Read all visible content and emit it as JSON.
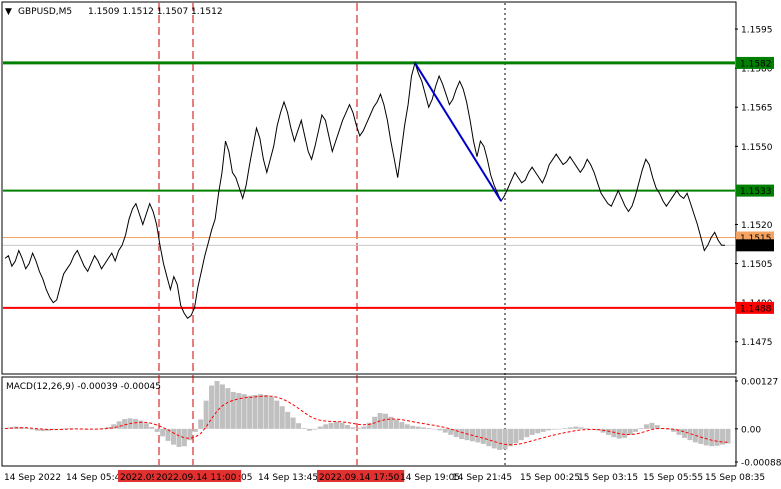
{
  "header": {
    "symbol_label": "GBPUSD,M5",
    "ohlc_values": "1.1509 1.1512 1.1507 1.1512",
    "macd_label": "MACD(12,26,9) -0.00039 -0.00045"
  },
  "chart_data": [
    {
      "type": "line",
      "series_role": "close price",
      "ylim": [
        1.1463,
        1.1605
      ],
      "y_ticks": [
        "1.1595",
        "1.1580",
        "1.1565",
        "1.1550",
        "1.1520",
        "1.1505",
        "1.1490",
        "1.1475"
      ],
      "x_labels": [
        "14 Sep 2022",
        "14 Sep 05:45",
        "2022.09",
        "2022.09.14 11:00",
        ":05",
        "14 Sep 13:45",
        "2022.09.14 17:50",
        "14 Sep 19:05",
        "14 Sep 21:45",
        "15 Sep 00:25",
        "15 Sep 03:15",
        "15 Sep 05:55",
        "15 Sep 08:35"
      ],
      "levels": [
        {
          "value": 1.1582,
          "label": "1.1582",
          "color": "#008000",
          "thick": true
        },
        {
          "value": 1.1533,
          "label": "1.1533",
          "color": "#008000",
          "thick": false
        },
        {
          "value": 1.1488,
          "label": "1.1488",
          "color": "#ff0000",
          "thick": false
        },
        {
          "value": 1.1515,
          "label": "1.1515",
          "color": "#f4a460",
          "thick": false
        }
      ],
      "bid_value": 1.1512,
      "bid_label": "1.1512",
      "colors": {
        "price": "#000000",
        "trend": "#0000cd",
        "vline_red": "#cc0000",
        "vline_gray": "#000000",
        "tag_text": "#ffffff",
        "bid_tag": "#000000"
      },
      "y": [
        1.1507,
        1.1508,
        1.1504,
        1.1506,
        1.151,
        1.1507,
        1.1503,
        1.1505,
        1.1509,
        1.1506,
        1.1502,
        1.1499,
        1.1495,
        1.1492,
        1.149,
        1.1491,
        1.1496,
        1.1501,
        1.1503,
        1.1505,
        1.1508,
        1.151,
        1.1507,
        1.1504,
        1.1502,
        1.1505,
        1.1508,
        1.1506,
        1.1503,
        1.1505,
        1.1507,
        1.1509,
        1.1506,
        1.151,
        1.1512,
        1.1516,
        1.1522,
        1.1526,
        1.1528,
        1.1524,
        1.152,
        1.1524,
        1.1528,
        1.1525,
        1.152,
        1.1512,
        1.1505,
        1.15,
        1.1495,
        1.15,
        1.1497,
        1.1489,
        1.1486,
        1.1484,
        1.1485,
        1.1488,
        1.1496,
        1.1502,
        1.1508,
        1.1513,
        1.1518,
        1.1522,
        1.1532,
        1.154,
        1.1552,
        1.1548,
        1.154,
        1.1538,
        1.1534,
        1.153,
        1.1535,
        1.1543,
        1.155,
        1.1557,
        1.1553,
        1.1545,
        1.154,
        1.1545,
        1.155,
        1.1558,
        1.1563,
        1.1567,
        1.1563,
        1.1557,
        1.1552,
        1.1556,
        1.156,
        1.1554,
        1.1548,
        1.1545,
        1.155,
        1.1556,
        1.1562,
        1.156,
        1.1554,
        1.1548,
        1.1552,
        1.1556,
        1.156,
        1.1563,
        1.1566,
        1.1563,
        1.1558,
        1.1554,
        1.1556,
        1.1559,
        1.1562,
        1.1565,
        1.1567,
        1.157,
        1.1566,
        1.156,
        1.1552,
        1.1545,
        1.1538,
        1.1548,
        1.1558,
        1.1566,
        1.1577,
        1.1582,
        1.1578,
        1.1575,
        1.157,
        1.1565,
        1.1568,
        1.1573,
        1.1577,
        1.1574,
        1.157,
        1.1566,
        1.1568,
        1.1572,
        1.1575,
        1.1572,
        1.1567,
        1.156,
        1.1552,
        1.1546,
        1.1552,
        1.155,
        1.1545,
        1.1539,
        1.1535,
        1.1532,
        1.1529,
        1.1531,
        1.1534,
        1.1537,
        1.154,
        1.1538,
        1.1536,
        1.1537,
        1.154,
        1.1542,
        1.154,
        1.1538,
        1.1536,
        1.1539,
        1.1543,
        1.1545,
        1.1547,
        1.1545,
        1.1543,
        1.1544,
        1.1546,
        1.1544,
        1.1542,
        1.154,
        1.1542,
        1.1545,
        1.1543,
        1.154,
        1.1536,
        1.1532,
        1.153,
        1.1528,
        1.1527,
        1.153,
        1.1533,
        1.153,
        1.1527,
        1.1525,
        1.1527,
        1.1531,
        1.1536,
        1.1541,
        1.1545,
        1.1543,
        1.1538,
        1.1534,
        1.1532,
        1.1529,
        1.1527,
        1.1529,
        1.1531,
        1.1533,
        1.1531,
        1.153,
        1.1532,
        1.1528,
        1.1524,
        1.152,
        1.1515,
        1.151,
        1.1512,
        1.1515,
        1.1517,
        1.1514,
        1.1512,
        1.1512
      ]
    },
    {
      "type": "bar",
      "series_role": "MACD(12,26,9)",
      "ylim": [
        -0.00096,
        0.00135
      ],
      "y_ticks": [
        "0.00127",
        "0.00",
        "-0.00088"
      ],
      "colors": {
        "histogram": "#c0c0c0",
        "signal": "#ff0000"
      },
      "macd": [
        1e-05,
        4e-05,
        6e-05,
        5e-05,
        2e-05,
        -2e-05,
        -5e-05,
        -6e-05,
        -5e-05,
        -3e-05,
        -1e-05,
        1e-05,
        2e-05,
        1e-05,
        -1e-05,
        -2e-05,
        -1e-05,
        0.0,
        2e-05,
        5e-05,
        0.00012,
        0.0002,
        0.00026,
        0.00028,
        0.00026,
        0.00022,
        0.00015,
        5e-05,
        -8e-05,
        -0.0002,
        -0.00032,
        -0.00042,
        -0.00048,
        -0.00046,
        -0.0003,
        -8e-05,
        0.00025,
        0.00075,
        0.00115,
        0.00127,
        0.00118,
        0.00108,
        0.00098,
        0.00095,
        0.00092,
        0.00088,
        0.0009,
        0.00092,
        0.0009,
        0.00085,
        0.00075,
        0.0006,
        0.00045,
        0.0003,
        0.00015,
        2e-05,
        -5e-05,
        -2e-05,
        6e-05,
        0.00012,
        0.00016,
        0.00018,
        0.00016,
        0.0001,
        4e-05,
        2e-05,
        6e-05,
        0.00016,
        0.00032,
        0.00042,
        0.0004,
        0.00032,
        0.00024,
        0.00018,
        0.00012,
        8e-05,
        6e-05,
        4e-05,
        2e-05,
        0.0,
        -4e-05,
        -0.0001,
        -0.00016,
        -0.00022,
        -0.00027,
        -0.0003,
        -0.00033,
        -0.00036,
        -0.0004,
        -0.00046,
        -0.00052,
        -0.00056,
        -0.00054,
        -0.00046,
        -0.00038,
        -0.0003,
        -0.00022,
        -0.00016,
        -0.00012,
        -8e-05,
        -4e-05,
        -2e-05,
        0.0,
        2e-05,
        4e-05,
        6e-05,
        4e-05,
        2e-05,
        0.0,
        -4e-05,
        -0.0001,
        -0.00016,
        -0.00022,
        -0.00026,
        -0.00024,
        -0.00016,
        -8e-05,
        2e-05,
        0.00012,
        0.00016,
        0.0001,
        2e-05,
        -2e-05,
        -8e-05,
        -0.00016,
        -0.00024,
        -0.0003,
        -0.00036,
        -0.0004,
        -0.00044,
        -0.00046,
        -0.00045,
        -0.00042,
        -0.00039
      ]
    }
  ]
}
